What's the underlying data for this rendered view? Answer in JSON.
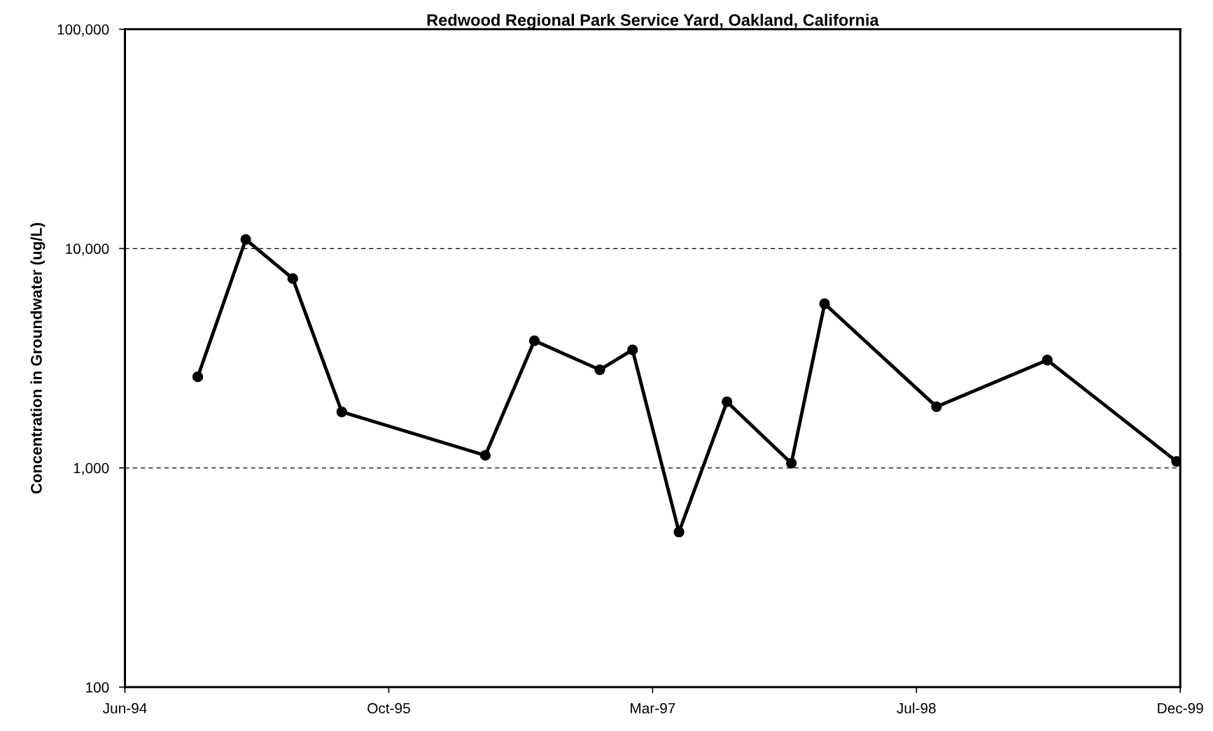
{
  "chart_data": {
    "type": "line",
    "title": "Redwood Regional Park Service Yard, Oakland, California",
    "ylabel": "Concentration in Groundwater (ug/L)",
    "x": [
      "1994-10-31",
      "1995-01-30",
      "1995-04-29",
      "1995-07-31",
      "1996-04-28",
      "1996-07-30",
      "1996-12-01",
      "1997-02-01",
      "1997-04-30",
      "1997-07-30",
      "1997-11-29",
      "1998-01-31",
      "1998-08-31",
      "1999-03-29",
      "1999-11-29"
    ],
    "series": [
      {
        "color": "#000000",
        "values": [
          2600,
          11000,
          7300,
          1800,
          1140,
          3800,
          2800,
          3450,
          510,
          2000,
          1050,
          5600,
          1900,
          3100,
          1070
        ]
      }
    ],
    "log": "y",
    "ylim": [
      100,
      100000
    ],
    "yticks": [
      {
        "value": 100,
        "label": "100"
      },
      {
        "value": 1000,
        "label": "1,000"
      },
      {
        "value": 10000,
        "label": "10,000"
      },
      {
        "value": 100000,
        "label": "100,000"
      }
    ],
    "xlim": [
      "1994-06-15",
      "1999-12-06"
    ],
    "xticks": [
      {
        "value": "1994-06-15",
        "label": "Jun-94"
      },
      {
        "value": "1995-10-28",
        "label": "Oct-95"
      },
      {
        "value": "1997-03-11",
        "label": "Mar-97"
      },
      {
        "value": "1998-07-24",
        "label": "Jul-98"
      },
      {
        "value": "1999-12-06",
        "label": "Dec-99"
      }
    ],
    "grid": "y",
    "marker": "circle",
    "line_style": "solid",
    "legend": false
  }
}
